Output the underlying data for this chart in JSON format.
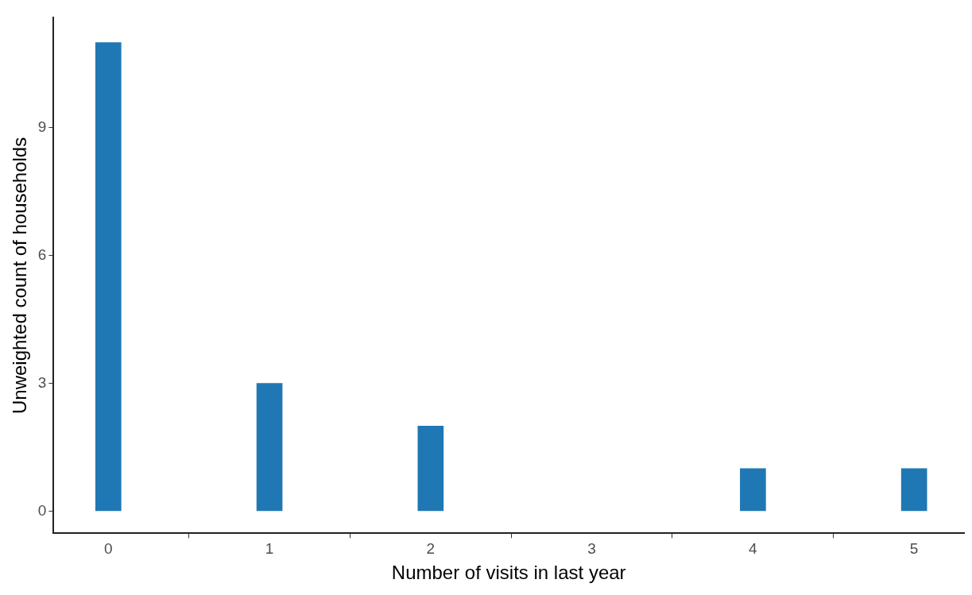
{
  "chart_data": {
    "type": "bar",
    "xlabel": "Number of visits in last year",
    "ylabel": "Unweighted count of households",
    "x": [
      0,
      1,
      2,
      4,
      5
    ],
    "values": [
      11,
      3,
      2,
      1,
      1
    ],
    "color": "#1f78b4",
    "xlim": [
      -0.34,
      5.31
    ],
    "xticks": [
      0,
      1,
      2,
      3,
      4,
      5
    ],
    "ylim": [
      -0.52,
      11.58
    ],
    "yticks": [
      0,
      3,
      6,
      9
    ],
    "grid": false,
    "legend": false
  }
}
